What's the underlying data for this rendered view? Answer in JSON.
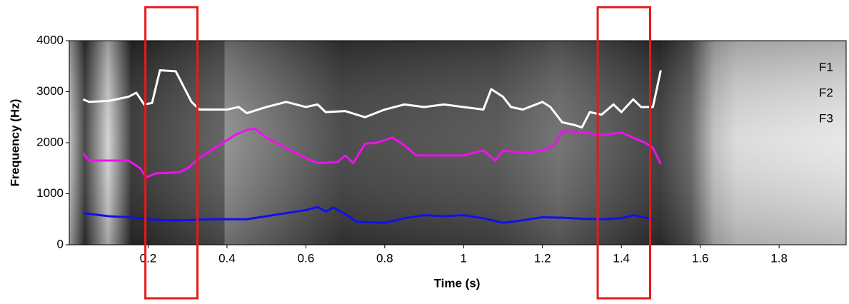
{
  "chart_data": {
    "type": "line",
    "xlabel": "Time (s)",
    "ylabel": "Frequency (Hz)",
    "xlim": [
      0,
      1.97
    ],
    "ylim": [
      0,
      4000
    ],
    "xticks": [
      0.2,
      0.4,
      0.6,
      0.8,
      1,
      1.2,
      1.4,
      1.6,
      1.8
    ],
    "yticks": [
      0,
      1000,
      2000,
      3000,
      4000
    ],
    "highlight_color": "#e8191b",
    "highlight_ranges": [
      [
        0.193,
        0.325
      ],
      [
        1.34,
        1.473
      ]
    ],
    "series": [
      {
        "name": "F1",
        "color": "#1010ee",
        "x": [
          0.035,
          0.1,
          0.15,
          0.2,
          0.25,
          0.3,
          0.35,
          0.45,
          0.5,
          0.55,
          0.6,
          0.63,
          0.65,
          0.67,
          0.7,
          0.73,
          0.8,
          0.85,
          0.9,
          0.95,
          1.0,
          1.05,
          1.1,
          1.15,
          1.2,
          1.25,
          1.3,
          1.35,
          1.4,
          1.43,
          1.48
        ],
        "values": [
          620,
          560,
          540,
          500,
          480,
          480,
          500,
          500,
          560,
          620,
          680,
          740,
          650,
          730,
          600,
          450,
          430,
          520,
          580,
          560,
          580,
          520,
          430,
          480,
          540,
          530,
          510,
          500,
          520,
          580,
          500
        ]
      },
      {
        "name": "F2",
        "color": "#ee11ee",
        "x": [
          0.035,
          0.05,
          0.1,
          0.15,
          0.18,
          0.195,
          0.22,
          0.28,
          0.3,
          0.33,
          0.38,
          0.42,
          0.45,
          0.47,
          0.5,
          0.55,
          0.6,
          0.63,
          0.68,
          0.7,
          0.72,
          0.75,
          0.78,
          0.82,
          0.85,
          0.88,
          0.95,
          1.0,
          1.05,
          1.08,
          1.1,
          1.15,
          1.2,
          1.23,
          1.25,
          1.3,
          1.35,
          1.4,
          1.43,
          1.46,
          1.48,
          1.5
        ],
        "values": [
          1800,
          1650,
          1650,
          1650,
          1500,
          1320,
          1400,
          1420,
          1500,
          1700,
          1950,
          2150,
          2250,
          2280,
          2100,
          1900,
          1700,
          1600,
          1620,
          1750,
          1600,
          1980,
          2000,
          2100,
          1950,
          1750,
          1750,
          1750,
          1850,
          1650,
          1850,
          1800,
          1850,
          1950,
          2230,
          2200,
          2150,
          2200,
          2100,
          2000,
          1900,
          1580
        ]
      },
      {
        "name": "F3",
        "color": "#ffffff",
        "x": [
          0.035,
          0.05,
          0.1,
          0.15,
          0.17,
          0.19,
          0.21,
          0.23,
          0.27,
          0.29,
          0.31,
          0.33,
          0.4,
          0.43,
          0.45,
          0.5,
          0.55,
          0.6,
          0.63,
          0.65,
          0.7,
          0.75,
          0.8,
          0.85,
          0.9,
          0.95,
          1.0,
          1.05,
          1.07,
          1.1,
          1.12,
          1.15,
          1.2,
          1.22,
          1.25,
          1.28,
          1.3,
          1.32,
          1.35,
          1.38,
          1.4,
          1.43,
          1.45,
          1.48,
          1.5
        ],
        "values": [
          2850,
          2800,
          2820,
          2900,
          2980,
          2750,
          2780,
          3420,
          3400,
          3100,
          2800,
          2650,
          2650,
          2700,
          2580,
          2700,
          2800,
          2700,
          2750,
          2600,
          2620,
          2500,
          2650,
          2750,
          2700,
          2750,
          2700,
          2650,
          3050,
          2900,
          2700,
          2650,
          2800,
          2700,
          2400,
          2350,
          2300,
          2600,
          2550,
          2750,
          2600,
          2850,
          2700,
          2700,
          3420
        ]
      }
    ]
  }
}
